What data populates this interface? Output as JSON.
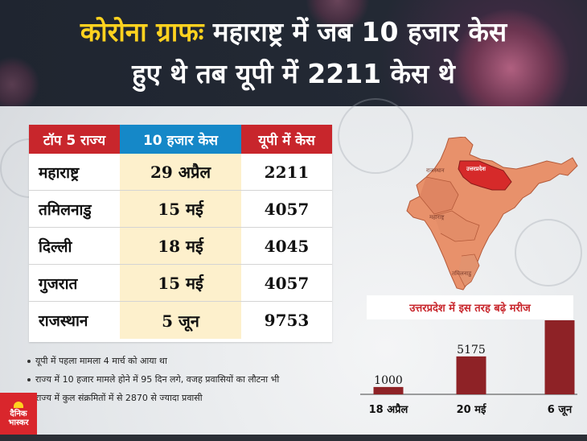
{
  "header": {
    "title_accent": "कोरोना ग्राफः",
    "title_rest": "महाराष्ट्र में जब 10 हजार केस",
    "title_line2": "हुए थे तब यूपी में 2211 केस थे"
  },
  "table": {
    "headers": [
      "टॉप 5 राज्य",
      "10 हजार केस",
      "यूपी में केस"
    ],
    "rows": [
      {
        "state": "महाराष्ट्र",
        "date": "29 अप्रैल",
        "up_cases": "2211"
      },
      {
        "state": "तमिलनाडु",
        "date": "15 मई",
        "up_cases": "4057"
      },
      {
        "state": "दिल्ली",
        "date": "18 मई",
        "up_cases": "4045"
      },
      {
        "state": "गुजरात",
        "date": "15 मई",
        "up_cases": "4057"
      },
      {
        "state": "राजस्थान",
        "date": "5 जून",
        "up_cases": "9753"
      }
    ]
  },
  "notes": [
    "यूपी में पहला मामला 4 मार्च को आया था",
    "राज्य में 10 हजार मामले होने में 95 दिन लगे, वजह प्रवासियों का लौटना भी",
    "राज्य में कुल संक्रमितों में से 2870 से ज्यादा प्रवासी"
  ],
  "map": {
    "labels": [
      "राजस्थान",
      "उत्तरप्रदेश",
      "महाराष्ट्र",
      "तमिलनाडु"
    ],
    "highlight_color": "#d62a2a",
    "state_color": "#e8916b"
  },
  "chart_data": {
    "type": "bar",
    "title": "उत्तरप्रदेश में इस तरह बढ़े मरीज",
    "categories": [
      "18 अप्रैल",
      "20 मई",
      "6 जून"
    ],
    "values": [
      1000,
      5175,
      10103
    ],
    "ylim": [
      0,
      10103
    ],
    "grid": false,
    "bar_color": "#8e2226"
  },
  "logo": {
    "line1": "दैनिक",
    "line2": "भास्कर"
  },
  "colors": {
    "red": "#c8262c",
    "blue": "#1588c8",
    "yellow": "#ffd21f",
    "cream": "#fdf0cc"
  }
}
